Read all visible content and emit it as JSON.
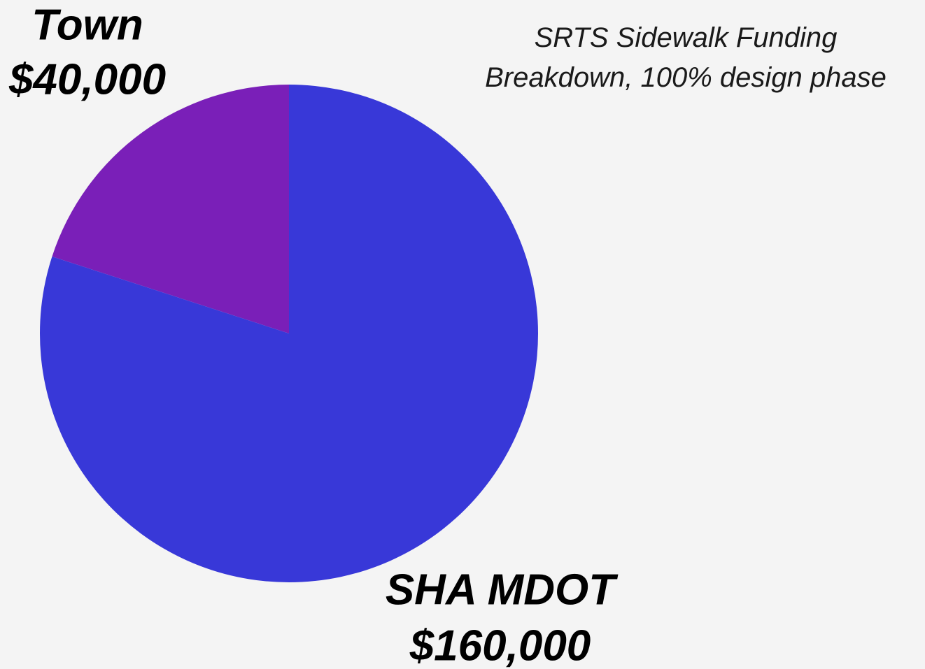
{
  "chart_data": {
    "type": "pie",
    "title": "SRTS Sidewalk Funding Breakdown, 100% design phase",
    "categories": [
      "Town",
      "SHA MDOT"
    ],
    "values": [
      40000,
      160000
    ],
    "value_labels": [
      "$40,000",
      "$160,000"
    ],
    "colors": [
      "#7a1fb8",
      "#3838d8"
    ]
  }
}
